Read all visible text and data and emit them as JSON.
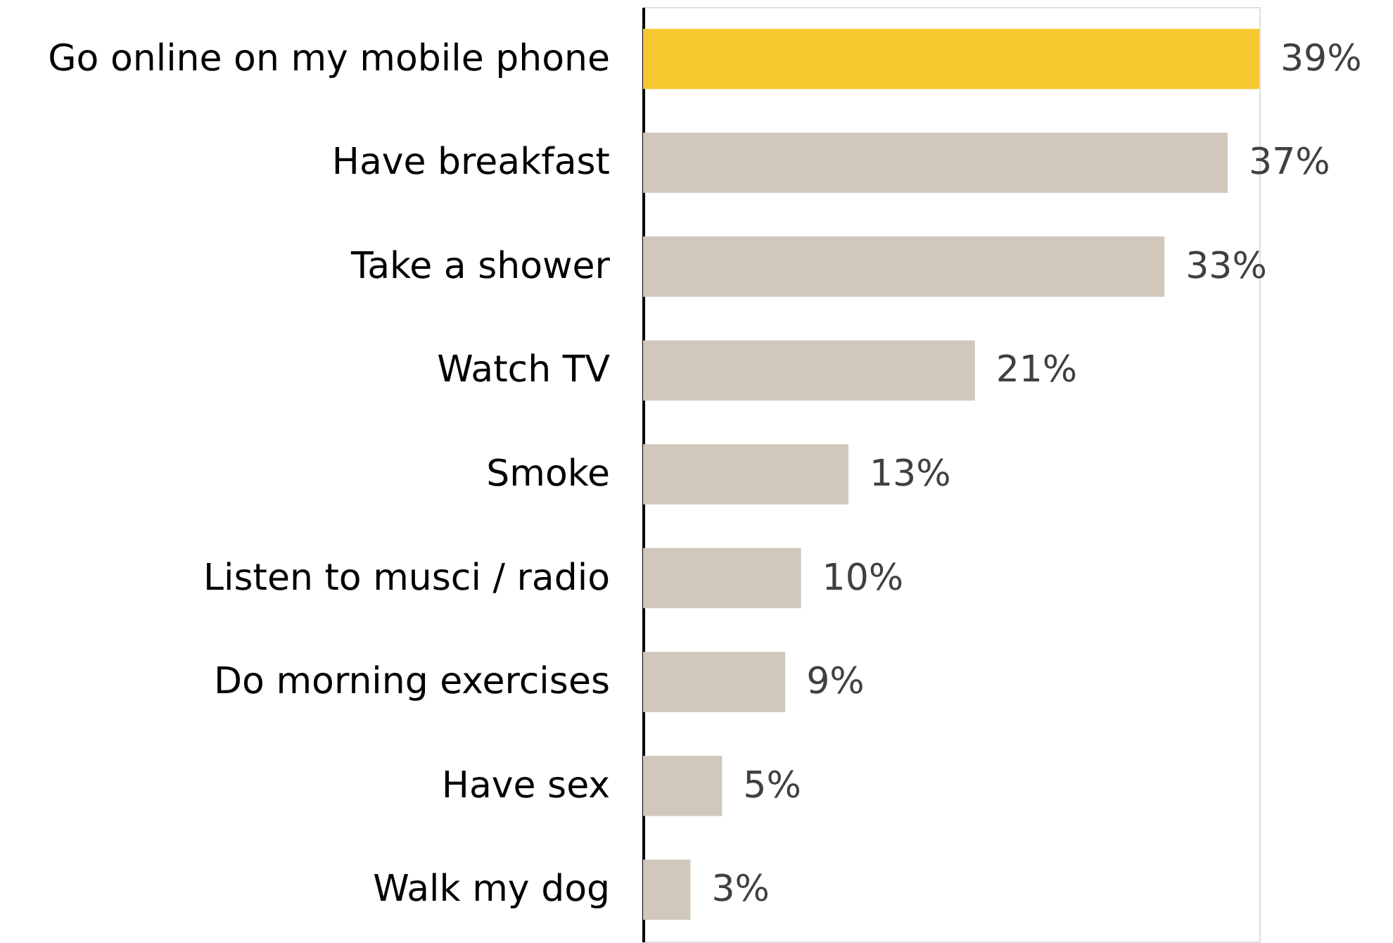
{
  "chart_data": {
    "type": "bar",
    "orientation": "horizontal",
    "categories": [
      "Go online on my mobile phone",
      "Have breakfast",
      "Take a shower",
      "Watch TV",
      "Smoke",
      "Listen to musci / radio",
      "Do morning exercises",
      "Have sex",
      "Walk my dog"
    ],
    "values": [
      39,
      37,
      33,
      21,
      13,
      10,
      9,
      5,
      3
    ],
    "colors": [
      "#f5c830",
      "#d1c8bb",
      "#d1c8bb",
      "#d1c8bb",
      "#d1c8bb",
      "#d1c8bb",
      "#d1c8bb",
      "#d1c8bb",
      "#d1c8bb"
    ],
    "value_labels": [
      "39%",
      "37%",
      "33%",
      "21%",
      "13%",
      "10%",
      "9%",
      "5%",
      "3%"
    ],
    "tick_labels": "y",
    "grid": false
  }
}
